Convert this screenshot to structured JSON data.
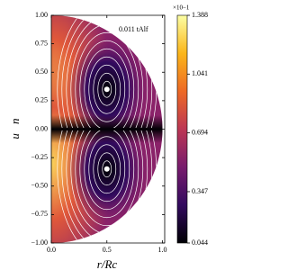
{
  "chart_data": {
    "type": "streamplot",
    "xlabel": "r/Rc",
    "ylabel": "u⃗n",
    "annotation": "0.011 tAlf",
    "xlim": [
      0,
      1.02
    ],
    "xticks": [
      {
        "value": 0,
        "label": "0.0"
      },
      {
        "value": 0.5,
        "label": "0.5"
      },
      {
        "value": 1,
        "label": "1.0"
      }
    ],
    "ylim": [
      -1,
      1
    ],
    "yticks": [
      {
        "value": -1,
        "label": "−1.00"
      },
      {
        "value": -0.75,
        "label": "−0.75"
      },
      {
        "value": -0.5,
        "label": "−0.50"
      },
      {
        "value": -0.25,
        "label": "−0.25"
      },
      {
        "value": 0,
        "label": "0.00"
      },
      {
        "value": 0.25,
        "label": "0.25"
      },
      {
        "value": 0.5,
        "label": "0.50"
      },
      {
        "value": 0.75,
        "label": "0.75"
      },
      {
        "value": 1,
        "label": "1.00"
      }
    ],
    "colorbar": {
      "lim": [
        0.044,
        1.388
      ],
      "ticks": [
        0.044,
        0.347,
        0.694,
        1.041,
        1.388
      ],
      "offset_label": "×10−1",
      "colormap": [
        "#000004",
        "#320a5e",
        "#781c6d",
        "#bc3754",
        "#ed6925",
        "#fbb61a",
        "#fcffa4"
      ]
    }
  }
}
